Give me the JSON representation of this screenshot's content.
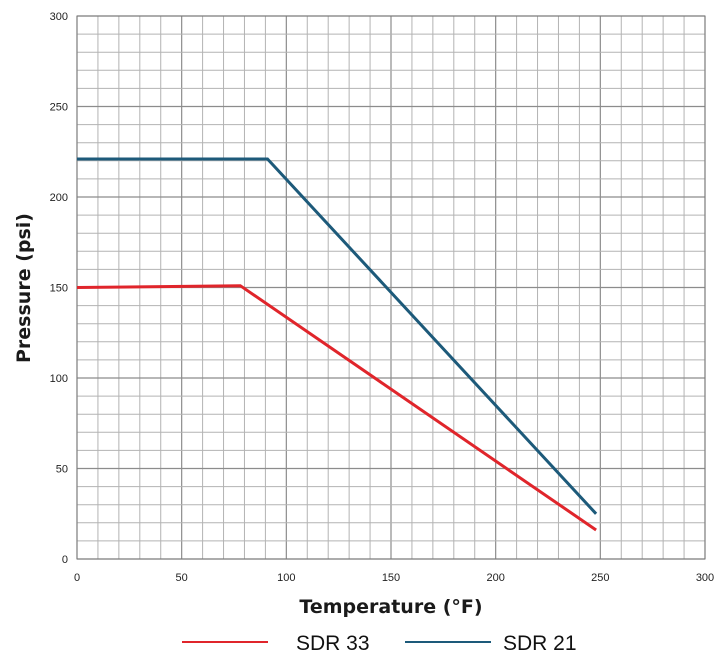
{
  "chart_data": {
    "type": "line",
    "xlabel": "Temperature (°F)",
    "ylabel": "Pressure (psi)",
    "xlim": [
      0,
      300
    ],
    "ylim": [
      0,
      300
    ],
    "x_ticks": [
      0,
      50,
      100,
      150,
      200,
      250,
      300
    ],
    "y_ticks": [
      0,
      50,
      100,
      150,
      200,
      250,
      300
    ],
    "grid": true,
    "legend_position": "bottom",
    "series": [
      {
        "name": "SDR 33",
        "color": "#e0252b",
        "points": [
          [
            0,
            150
          ],
          [
            78,
            151
          ],
          [
            248,
            16
          ]
        ]
      },
      {
        "name": "SDR 21",
        "color": "#1d5a7a",
        "points": [
          [
            0,
            221
          ],
          [
            91,
            221
          ],
          [
            248,
            25
          ]
        ]
      }
    ]
  }
}
